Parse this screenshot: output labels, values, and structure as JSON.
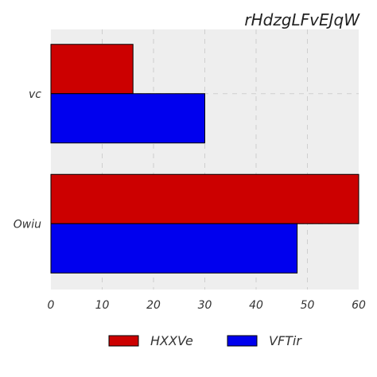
{
  "chart_data": {
    "type": "bar",
    "orientation": "horizontal",
    "title": "rHdzgLFvEJqW",
    "xlabel": "",
    "ylabel": "",
    "categories": [
      "vc",
      "Owiu"
    ],
    "series": [
      {
        "name": "HXXVe",
        "values": [
          16,
          60
        ],
        "color": "#cc0000"
      },
      {
        "name": "VFTir",
        "values": [
          30,
          48
        ],
        "color": "#0000ee"
      }
    ],
    "xlim": [
      0,
      60
    ],
    "xticks": [
      0,
      10,
      20,
      30,
      40,
      50,
      60
    ],
    "grid": true,
    "legend_position": "bottom-center",
    "plot_background": "#eeeeee"
  }
}
